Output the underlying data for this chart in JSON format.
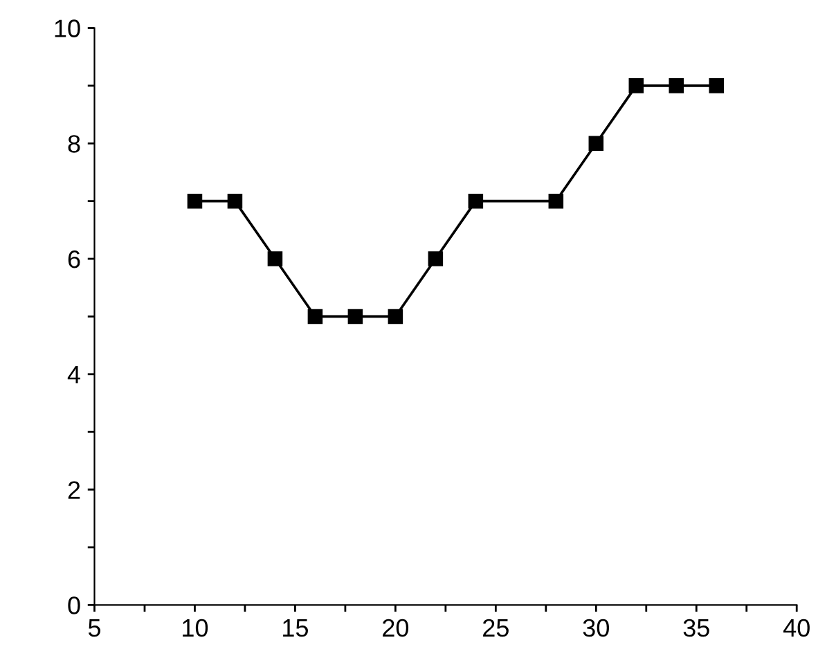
{
  "chart_data": {
    "type": "line",
    "x": [
      10,
      12,
      14,
      16,
      18,
      20,
      22,
      24,
      28,
      30,
      32,
      34,
      36
    ],
    "series": [
      {
        "color": "#000000",
        "values": [
          7,
          7,
          6,
          5,
          5,
          5,
          6,
          7,
          7,
          8,
          9,
          9,
          9
        ]
      }
    ],
    "xlim": [
      5,
      40
    ],
    "ylim": [
      0,
      10
    ],
    "xticks": [
      5,
      {
        "value": 7.5,
        "label": null
      },
      10,
      {
        "value": 12.5,
        "label": null
      },
      15,
      {
        "value": 17.5,
        "label": null
      },
      20,
      {
        "value": 22.5,
        "label": null
      },
      25,
      {
        "value": 27.5,
        "label": null
      },
      30,
      {
        "value": 32.5,
        "label": null
      },
      35,
      {
        "value": 37.5,
        "label": null
      },
      40
    ],
    "yticks": [
      0,
      {
        "value": 1,
        "label": null
      },
      2,
      {
        "value": 3,
        "label": null
      },
      4,
      {
        "value": 5,
        "label": null
      },
      6,
      {
        "value": 7,
        "label": null
      },
      8,
      {
        "value": 9,
        "label": null
      },
      10
    ],
    "marker": "square",
    "line_style": "solid",
    "grid": false,
    "legend": false
  }
}
